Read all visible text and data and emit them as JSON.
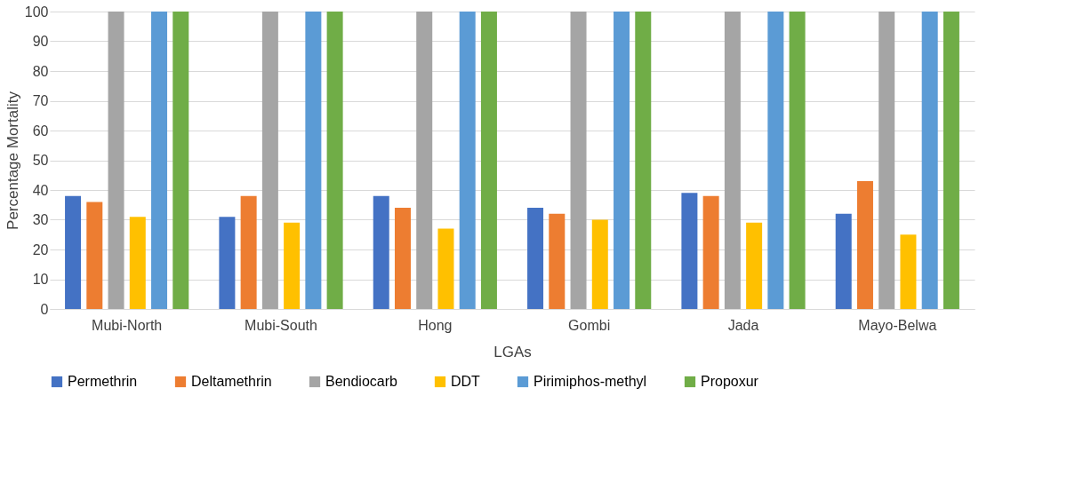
{
  "chart_data": {
    "type": "bar",
    "xlabel": "LGAs",
    "ylabel": "Percentage Mortality",
    "categories": [
      "Mubi-North",
      "Mubi-South",
      "Hong",
      "Gombi",
      "Jada",
      "Mayo-Belwa"
    ],
    "series": [
      {
        "name": "Permethrin",
        "color": "#4472c4",
        "values": [
          38,
          31,
          38,
          34,
          39,
          32
        ]
      },
      {
        "name": "Deltamethrin",
        "color": "#ed7d31",
        "values": [
          36,
          38,
          34,
          32,
          38,
          43
        ]
      },
      {
        "name": "Bendiocarb",
        "color": "#a5a5a5",
        "values": [
          100,
          100,
          100,
          100,
          100,
          100
        ]
      },
      {
        "name": "DDT",
        "color": "#ffc000",
        "values": [
          31,
          29,
          27,
          30,
          29,
          25
        ]
      },
      {
        "name": "Pirimiphos-methyl",
        "color": "#5b9bd5",
        "values": [
          100,
          100,
          100,
          100,
          100,
          100
        ]
      },
      {
        "name": "Propoxur",
        "color": "#70ad47",
        "values": [
          100,
          100,
          100,
          100,
          100,
          100
        ]
      }
    ],
    "ylim": [
      0,
      100
    ],
    "yticks": [
      0,
      10,
      20,
      30,
      40,
      50,
      60,
      70,
      80,
      90,
      100
    ],
    "grid": "y",
    "legend": "bottom"
  }
}
